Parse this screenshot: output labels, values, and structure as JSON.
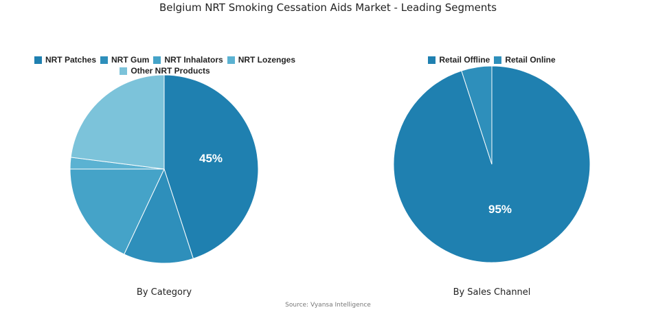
{
  "title": "Belgium NRT Smoking Cessation Aids Market - Leading Segments",
  "source": "Source: Vyansa Intelligence",
  "chart_data": [
    {
      "type": "pie",
      "subtitle": "By Category",
      "legend_position": "top",
      "labels": [
        "NRT Patches",
        "NRT Gum",
        "NRT Inhalators",
        "NRT Lozenges",
        "Other NRT Products"
      ],
      "values": [
        45,
        12,
        18,
        2,
        23
      ],
      "colors": [
        "#1f80b0",
        "#2e8fbb",
        "#45a3c8",
        "#5bb2d2",
        "#7cc3da"
      ],
      "data_labels": [
        "45%",
        "",
        "",
        "",
        ""
      ]
    },
    {
      "type": "pie",
      "subtitle": "By Sales Channel",
      "legend_position": "top",
      "labels": [
        "Retail Offline",
        "Retail Online"
      ],
      "values": [
        95,
        5
      ],
      "colors": [
        "#1f80b0",
        "#2e8fbb"
      ],
      "data_labels": [
        "95%",
        ""
      ]
    }
  ]
}
